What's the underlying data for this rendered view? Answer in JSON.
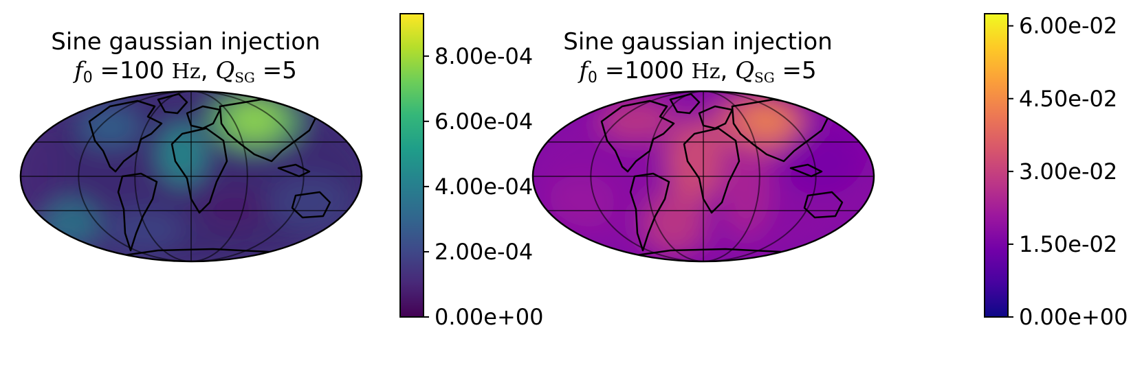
{
  "panels": [
    {
      "title_line1": "Sine gaussian injection",
      "f_symbol": "f",
      "f_sub": "0",
      "f_value": "100",
      "f_unit": "Hz",
      "q_symbol": "Q",
      "q_sub": "SG",
      "q_value": "5",
      "colormap": "viridis",
      "colorbar_ticks": [
        "0.00e+00",
        "2.00e-04",
        "4.00e-04",
        "6.00e-04",
        "8.00e-04"
      ],
      "colorbar_tick_values": [
        0,
        0.0002,
        0.0004,
        0.0006,
        0.0008
      ],
      "colorbar_range": [
        0,
        0.00093
      ],
      "colors": {
        "low": "#440154",
        "mid": "#21918c",
        "high": "#fde725"
      }
    },
    {
      "title_line1": "Sine gaussian injection",
      "f_symbol": "f",
      "f_sub": "0",
      "f_value": "1000",
      "f_unit": "Hz",
      "q_symbol": "Q",
      "q_sub": "SG",
      "q_value": "5",
      "colormap": "plasma",
      "colorbar_ticks": [
        "0.00e+00",
        "1.50e-02",
        "3.00e-02",
        "4.50e-02",
        "6.00e-02"
      ],
      "colorbar_tick_values": [
        0,
        0.015,
        0.03,
        0.045,
        0.06
      ],
      "colorbar_range": [
        0,
        0.0625
      ],
      "colors": {
        "low": "#0d0887",
        "mid": "#cc4778",
        "high": "#f0f921"
      }
    }
  ],
  "map": {
    "projection": "Mollweide",
    "graticule": true,
    "coastlines": true
  }
}
